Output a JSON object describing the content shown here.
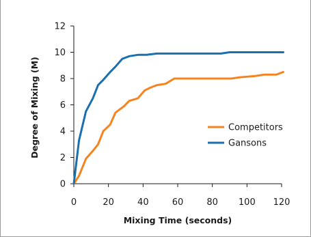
{
  "chart_data": {
    "type": "line",
    "title": "",
    "xlabel": "Mixing Time (seconds)",
    "ylabel": "Degree of Mixing (M)",
    "xlim": [
      0,
      120
    ],
    "ylim": [
      0,
      12
    ],
    "xticks": [
      0,
      20,
      40,
      60,
      80,
      100,
      120
    ],
    "yticks": [
      0,
      2,
      4,
      6,
      8,
      10,
      12
    ],
    "grid": false,
    "legend_position": "center-right",
    "series": [
      {
        "name": "Competitors",
        "color": "#f5841f",
        "x": [
          0,
          3,
          7,
          11,
          14,
          17,
          21,
          24,
          29,
          32,
          37,
          41,
          44,
          48,
          53,
          58,
          64,
          80,
          91,
          96,
          105,
          110,
          117,
          121
        ],
        "y": [
          0,
          0.6,
          1.9,
          2.5,
          3.0,
          4.0,
          4.5,
          5.4,
          5.9,
          6.3,
          6.5,
          7.1,
          7.3,
          7.5,
          7.6,
          8.0,
          8.0,
          8.0,
          8.0,
          8.1,
          8.2,
          8.3,
          8.3,
          8.5
        ]
      },
      {
        "name": "Gansons",
        "color": "#1a6faf",
        "x": [
          0,
          3,
          7,
          11,
          14,
          17,
          21,
          24,
          28,
          32,
          37,
          42,
          48,
          53,
          58,
          64,
          80,
          85,
          90,
          96,
          105,
          110,
          117,
          121
        ],
        "y": [
          0,
          3.3,
          5.5,
          6.5,
          7.5,
          7.9,
          8.5,
          8.9,
          9.5,
          9.7,
          9.8,
          9.8,
          9.9,
          9.9,
          9.9,
          9.9,
          9.9,
          9.9,
          10.0,
          10.0,
          10.0,
          10.0,
          10.0,
          10.0
        ]
      }
    ]
  }
}
